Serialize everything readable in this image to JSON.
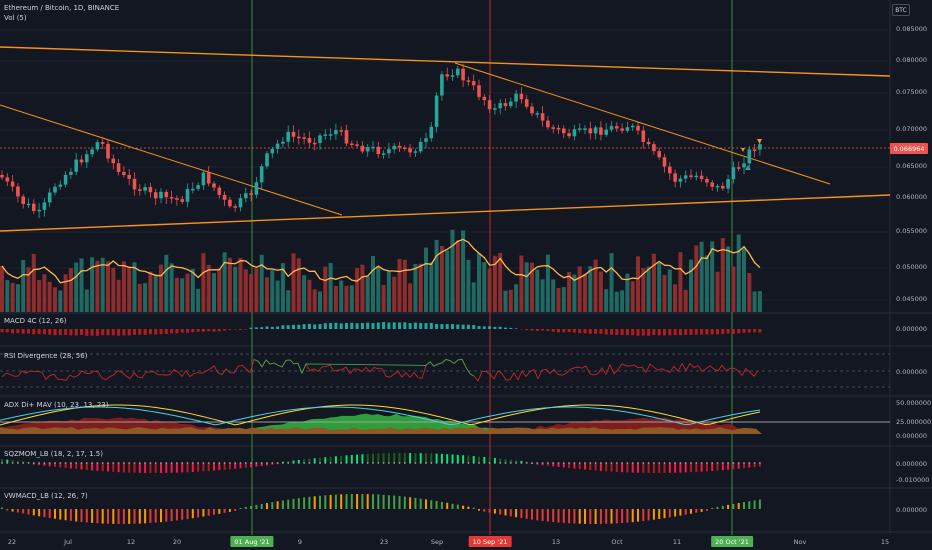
{
  "header": {
    "symbol_line": "Ethereum / Bitcoin, 1D, BINANCE",
    "volume_line": "Vol (5)",
    "currency_badge": "BTC"
  },
  "price_axis": {
    "labels": [
      "0.085000",
      "0.080000",
      "0.075000",
      "0.070000",
      "0.065000",
      "0.060000",
      "0.055000",
      "0.050000",
      "0.045000"
    ],
    "current_price": "0.066964"
  },
  "panes": {
    "macd": {
      "title": "MACD 4C (12, 26)",
      "axis_label": "0.000000"
    },
    "rsi": {
      "title": "RSI Divergence (28, 56)",
      "axis_label": "0.000000"
    },
    "adx": {
      "title": "ADX Di+ MAV (10, 23, 13, 23)",
      "axis_labels": [
        "50.000000",
        "25.000000",
        "0.000000"
      ]
    },
    "sqzmom": {
      "title": "SQZMOM_LB (18, 2, 17, 1.5)",
      "axis_labels": [
        "0.000000",
        "-0.010000"
      ]
    },
    "vwmacd": {
      "title": "VWMACD_LB (12, 26, 7)",
      "axis_label": "0.000000"
    }
  },
  "time_axis": {
    "labels": [
      "22",
      "Jul",
      "12",
      "20",
      "9",
      "23",
      "Sep",
      "13",
      "Oct",
      "11",
      "Nov",
      "15"
    ],
    "highlights": [
      {
        "text": "01 Aug '21",
        "color": "#4caf50"
      },
      {
        "text": "10 Sep '21",
        "color": "#e53935"
      },
      {
        "text": "20 Oct '21",
        "color": "#4caf50"
      }
    ]
  },
  "colors": {
    "background": "#131722",
    "bull": "#26a69a",
    "bear": "#ef5350",
    "trendline": "#f7931a",
    "volume_ma": "#ffb74d"
  }
}
